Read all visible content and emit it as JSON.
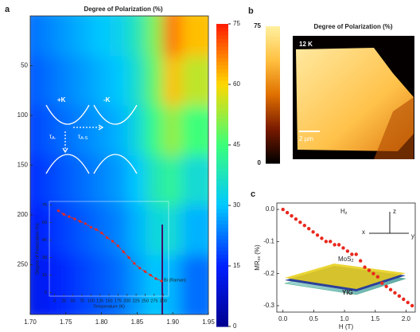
{
  "figure": {
    "panel_labels": [
      "a",
      "b",
      "c"
    ]
  },
  "chart_data": [
    {
      "type": "heatmap",
      "title": "Degree of Polarization (%)",
      "xbins": [
        1.7,
        1.725,
        1.75,
        1.775,
        1.8,
        1.825,
        1.85,
        1.875,
        1.9,
        1.925,
        1.95
      ],
      "ybins": [
        0,
        50,
        100,
        150,
        200,
        250,
        300
      ],
      "values": [
        [
          22,
          24,
          26,
          28,
          30,
          32,
          38,
          50,
          68,
          62
        ],
        [
          20,
          22,
          24,
          26,
          28,
          30,
          36,
          48,
          62,
          55
        ],
        [
          18,
          20,
          22,
          24,
          26,
          28,
          34,
          44,
          52,
          45
        ],
        [
          16,
          18,
          20,
          22,
          24,
          26,
          30,
          38,
          42,
          35
        ],
        [
          14,
          16,
          18,
          20,
          22,
          24,
          28,
          34,
          35,
          28
        ],
        [
          12,
          14,
          16,
          18,
          20,
          22,
          26,
          30,
          28,
          22
        ]
      ],
      "xlim": [
        1.7,
        1.95
      ],
      "ylim": [
        0,
        300
      ],
      "y_inverted": true,
      "xticks": [
        {
          "value": 1.7,
          "label": "1.70"
        },
        {
          "value": 1.75,
          "label": "1.75"
        },
        {
          "value": 1.8,
          "label": "1.80"
        },
        {
          "value": 1.85,
          "label": "1.85"
        },
        {
          "value": 1.9,
          "label": "1.90"
        },
        {
          "value": 1.95,
          "label": "1.95"
        }
      ],
      "yticks": [
        50,
        100,
        150,
        200,
        250
      ],
      "clim": [
        0,
        75
      ],
      "cticks": [
        0,
        15,
        30,
        45,
        60,
        75
      ],
      "colormap": [
        "#00008f",
        "#0020ff",
        "#00c8ff",
        "#3cff7a",
        "#ffd800",
        "#ff1a00"
      ],
      "diagram": {
        "valleys": [
          "+K",
          "-K"
        ],
        "tau_symbol": "τ",
        "tau_subs": [
          "A-",
          "A-S"
        ]
      }
    },
    {
      "type": "line",
      "xlabel": "Temperature (K)",
      "ylabel": "Degree of Polarization (%)",
      "x": [
        10,
        25,
        40,
        55,
        70,
        85,
        100,
        115,
        130,
        145,
        160,
        175,
        190,
        205,
        220,
        235,
        250,
        265,
        280,
        295
      ],
      "series": [
        {
          "color": "#e8281e",
          "values": [
            70,
            67,
            65,
            63,
            61,
            59,
            56,
            54,
            51,
            47,
            44,
            40,
            35,
            30,
            25,
            21,
            18,
            15,
            12,
            10
          ]
        }
      ],
      "xlim": [
        -15,
        315
      ],
      "ylim": [
        -3,
        78
      ],
      "xticks": [
        0,
        25,
        50,
        75,
        100,
        125,
        150,
        175,
        200,
        225,
        250,
        275,
        300
      ],
      "yticks": [
        0,
        15,
        30,
        45,
        60,
        75
      ],
      "annotation": "Bi (Raman)"
    },
    {
      "type": "image",
      "title": "Degree of Polarization (%)",
      "clim": [
        0,
        75
      ],
      "cticks": [
        0,
        75
      ],
      "colormap": [
        "#000000",
        "#7a1a00",
        "#e07000",
        "#ffc040",
        "#fff0a0"
      ],
      "annotations": [
        "12 K",
        "2 µm"
      ]
    },
    {
      "type": "scatter",
      "xlabel": "H (T)",
      "ylabel": {
        "main": "MR",
        "sub": "xx",
        "unit": "(%)"
      },
      "x": [
        0,
        0.07,
        0.14,
        0.21,
        0.28,
        0.35,
        0.42,
        0.49,
        0.56,
        0.63,
        0.7,
        0.77,
        0.84,
        0.91,
        0.98,
        1.05,
        1.12,
        1.19,
        1.26,
        1.33,
        1.4,
        1.47,
        1.54,
        1.61,
        1.68,
        1.75,
        1.82,
        1.89,
        1.96,
        2.03,
        2.1
      ],
      "series": [
        {
          "color": "#e8281e",
          "values": [
            0,
            -0.01,
            -0.02,
            -0.03,
            -0.04,
            -0.05,
            -0.06,
            -0.07,
            -0.08,
            -0.09,
            -0.1,
            -0.1,
            -0.11,
            -0.11,
            -0.12,
            -0.13,
            -0.14,
            -0.14,
            -0.16,
            -0.18,
            -0.19,
            -0.2,
            -0.21,
            -0.23,
            -0.24,
            -0.25,
            -0.26,
            -0.27,
            -0.28,
            -0.29,
            -0.3
          ]
        }
      ],
      "xlim": [
        -0.1,
        2.15
      ],
      "ylim": [
        -0.32,
        0.02
      ],
      "xticks": [
        {
          "value": 0,
          "label": "0.0"
        },
        {
          "value": 0.5,
          "label": "0.5"
        },
        {
          "value": 1,
          "label": "1.0"
        },
        {
          "value": 1.5,
          "label": "1.5"
        },
        {
          "value": 2,
          "label": "2.0"
        }
      ],
      "yticks": [
        {
          "value": 0,
          "label": "0.0"
        },
        {
          "value": -0.1,
          "label": "-0.1"
        },
        {
          "value": -0.2,
          "label": "-0.2"
        },
        {
          "value": -0.3,
          "label": "-0.3"
        }
      ],
      "annotations": {
        "field": "H",
        "field_sub": "z",
        "axes": [
          "z",
          "x",
          "y"
        ],
        "layer_top": "MoS",
        "layer_top_sub": "2",
        "layer_bottom": "YIG"
      }
    }
  ]
}
